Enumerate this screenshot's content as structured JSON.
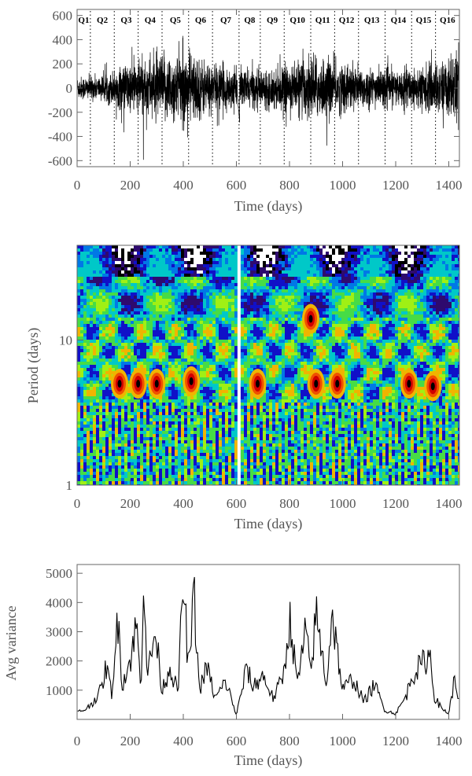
{
  "chart_data": [
    {
      "type": "line",
      "panel": "light-curve",
      "xlabel": "Time (days)",
      "ylabel": "",
      "xlim": [
        0,
        1440
      ],
      "ylim": [
        -650,
        650
      ],
      "xticks": [
        0,
        200,
        400,
        600,
        800,
        1000,
        1200,
        1400
      ],
      "yticks": [
        -600,
        -400,
        -200,
        0,
        200,
        400,
        600
      ],
      "quarters": [
        {
          "label": "Q1",
          "start": 0
        },
        {
          "label": "Q2",
          "start": 50
        },
        {
          "label": "Q3",
          "start": 140
        },
        {
          "label": "Q4",
          "start": 230
        },
        {
          "label": "Q5",
          "start": 320
        },
        {
          "label": "Q6",
          "start": 420
        },
        {
          "label": "Q7",
          "start": 510
        },
        {
          "label": "Q8",
          "start": 610
        },
        {
          "label": "Q9",
          "start": 690
        },
        {
          "label": "Q10",
          "start": 780
        },
        {
          "label": "Q11",
          "start": 880
        },
        {
          "label": "Q12",
          "start": 970
        },
        {
          "label": "Q13",
          "start": 1060
        },
        {
          "label": "Q14",
          "start": 1160
        },
        {
          "label": "Q15",
          "start": 1260
        },
        {
          "label": "Q16",
          "start": 1350
        }
      ],
      "quarter_boundaries": [
        50,
        140,
        230,
        320,
        420,
        510,
        610,
        690,
        780,
        880,
        970,
        1060,
        1160,
        1260,
        1350
      ],
      "amplitude_envelope": {
        "x": [
          0,
          100,
          160,
          230,
          260,
          420,
          500,
          600,
          700,
          800,
          880,
          1000,
          1100,
          1200,
          1300,
          1400,
          1440
        ],
        "y": [
          120,
          130,
          220,
          300,
          320,
          380,
          260,
          200,
          190,
          230,
          340,
          260,
          200,
          180,
          230,
          300,
          420
        ]
      },
      "color": "#000000"
    },
    {
      "type": "heatmap",
      "panel": "wavelet",
      "xlabel": "Time (days)",
      "ylabel": "Period (days)",
      "xlim": [
        0,
        1440
      ],
      "ylim": [
        1,
        45
      ],
      "yscale": "log",
      "xticks": [
        0,
        200,
        400,
        600,
        800,
        1000,
        1200,
        1400
      ],
      "yticks": [
        1,
        10
      ],
      "colormap": [
        "#ffffff",
        "#000000",
        "#2e0a6e",
        "#1010c8",
        "#0078e6",
        "#00c8c8",
        "#46dc46",
        "#a0f014",
        "#f0b400",
        "#f05000",
        "#d00000",
        "#000000"
      ],
      "strong_power_features": [
        {
          "time": 160,
          "period": 5.0
        },
        {
          "time": 230,
          "period": 5.0
        },
        {
          "time": 300,
          "period": 5.0
        },
        {
          "time": 430,
          "period": 5.2
        },
        {
          "time": 680,
          "period": 5.0
        },
        {
          "time": 880,
          "period": 14.0
        },
        {
          "time": 900,
          "period": 5.0
        },
        {
          "time": 980,
          "period": 5.0
        },
        {
          "time": 1250,
          "period": 5.0
        },
        {
          "time": 1340,
          "period": 4.8
        }
      ],
      "data_gaps": [
        610
      ]
    },
    {
      "type": "line",
      "panel": "average-variance",
      "xlabel": "Time (days)",
      "ylabel": "Avg variance",
      "xlim": [
        0,
        1440
      ],
      "ylim": [
        0,
        5300
      ],
      "xticks": [
        0,
        200,
        400,
        600,
        800,
        1000,
        1200,
        1400
      ],
      "yticks": [
        1000,
        2000,
        3000,
        4000,
        5000
      ],
      "x": [
        0,
        20,
        40,
        60,
        90,
        110,
        130,
        155,
        170,
        200,
        225,
        240,
        250,
        265,
        295,
        320,
        350,
        380,
        400,
        420,
        440,
        460,
        490,
        520,
        560,
        600,
        640,
        660,
        700,
        740,
        780,
        800,
        830,
        860,
        880,
        900,
        940,
        960,
        1000,
        1040,
        1080,
        1120,
        1160,
        1200,
        1240,
        1260,
        1300,
        1330,
        1345,
        1370,
        1400,
        1420,
        1440
      ],
      "y": [
        250,
        300,
        400,
        600,
        1000,
        1800,
        900,
        3500,
        1200,
        2000,
        3300,
        800,
        5200,
        1500,
        3000,
        1000,
        1800,
        900,
        4800,
        1600,
        4300,
        1000,
        1800,
        700,
        1300,
        150,
        1800,
        1100,
        1500,
        700,
        1600,
        3500,
        1200,
        3000,
        1600,
        3600,
        1200,
        3700,
        1000,
        1400,
        600,
        1200,
        300,
        200,
        800,
        1500,
        1900,
        2200,
        800,
        400,
        200,
        1300,
        700
      ],
      "color": "#000000"
    }
  ]
}
